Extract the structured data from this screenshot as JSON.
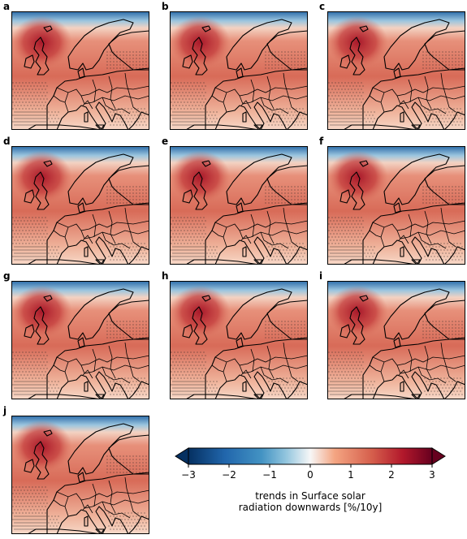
{
  "panels": [
    {
      "label": "a"
    },
    {
      "label": "b"
    },
    {
      "label": "c"
    },
    {
      "label": "d"
    },
    {
      "label": "e"
    },
    {
      "label": "f"
    },
    {
      "label": "g"
    },
    {
      "label": "h"
    },
    {
      "label": "i"
    },
    {
      "label": "j"
    }
  ],
  "colorbar": {
    "ticks": [
      "−3",
      "−2",
      "−1",
      "0",
      "1",
      "2",
      "3"
    ],
    "tick_values": [
      -3,
      -2,
      -1,
      0,
      1,
      2,
      3
    ],
    "range": [
      -3,
      3
    ],
    "extend": "both",
    "cmap": "RdBu_r",
    "title_line1": "trends in Surface solar",
    "title_line2": "radiation downwards [%/10y]"
  },
  "colors": {
    "dark_red": "#8b0a1e",
    "mid_red": "#d6604d",
    "light_red": "#f4a582",
    "pale": "#fbe3d6",
    "white": "#f7f7f7",
    "light_blue": "#92c5de",
    "mid_blue": "#4393c3",
    "dark_blue": "#053061"
  }
}
